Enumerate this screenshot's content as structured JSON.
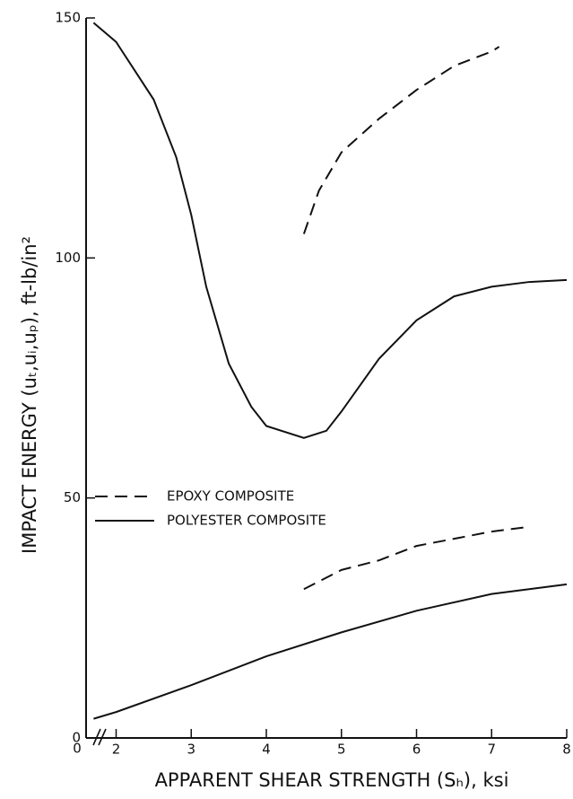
{
  "chart_data": {
    "type": "line",
    "xlabel": "APPARENT SHEAR STRENGTH (Sₕ), ksi",
    "ylabel": "IMPACT ENERGY (uₜ,uᵢ,uₚ), ft-lb/in²",
    "x_origin_label": "0",
    "xlim": [
      1.6,
      8
    ],
    "xticks": [
      2,
      3,
      4,
      5,
      6,
      7,
      8
    ],
    "ylim": [
      0,
      150
    ],
    "yticks": [
      0,
      50,
      100,
      150
    ],
    "color": "#111111",
    "legend": [
      {
        "name": "EPOXY COMPOSITE",
        "dash": true
      },
      {
        "name": "POLYESTER COMPOSITE",
        "dash": false
      }
    ],
    "series": [
      {
        "dash": false,
        "x": [
          1.7,
          2,
          2.5,
          2.8,
          3,
          3.2,
          3.5,
          3.8,
          4,
          4.5,
          4.8,
          5,
          5.5,
          6,
          6.5,
          7,
          7.5,
          8
        ],
        "values": [
          149,
          145,
          133,
          121,
          109,
          94,
          78,
          69,
          65,
          62.5,
          64,
          68,
          79,
          87,
          92,
          94,
          95,
          95.4
        ]
      },
      {
        "dash": true,
        "x": [
          4.5,
          4.7,
          5,
          5.5,
          6,
          6.5,
          7,
          7.1
        ],
        "values": [
          105,
          114,
          122,
          129,
          135,
          140,
          143,
          144
        ]
      },
      {
        "dash": true,
        "x": [
          4.5,
          5,
          5.5,
          6,
          6.5,
          7,
          7.5
        ],
        "values": [
          31,
          35,
          37,
          40,
          41.5,
          43,
          44
        ]
      },
      {
        "dash": false,
        "x": [
          1.7,
          2,
          3,
          4,
          5,
          6,
          7,
          8
        ],
        "values": [
          4,
          5.4,
          11,
          17,
          22,
          26.5,
          30,
          32
        ]
      }
    ]
  }
}
